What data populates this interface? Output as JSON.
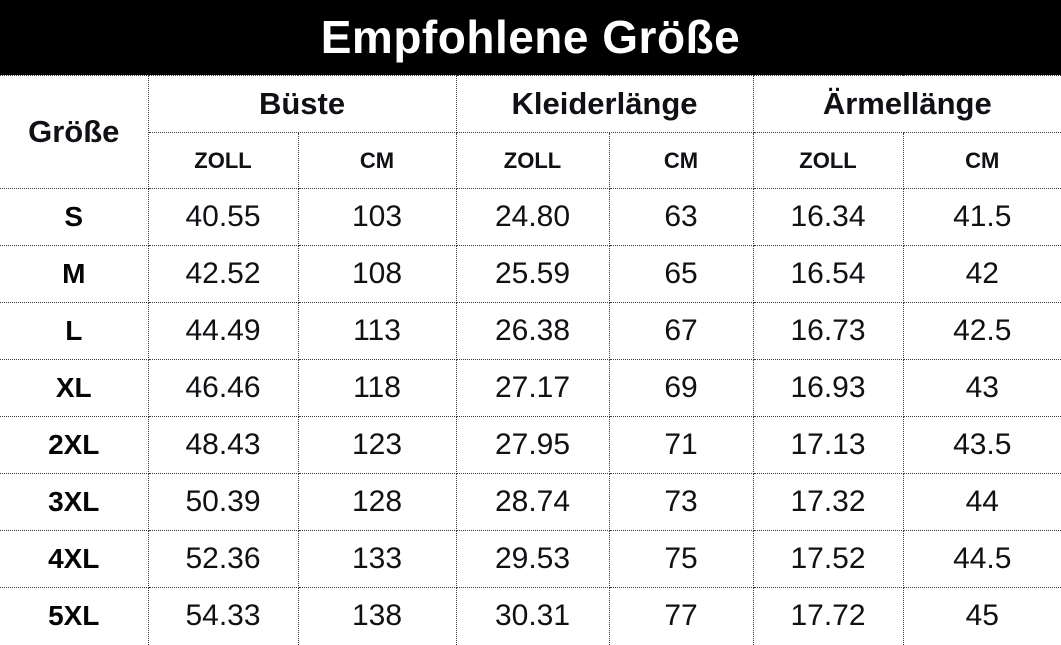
{
  "title": "Empfohlene Größe",
  "colors": {
    "title_bg": "#000000",
    "title_text": "#ffffff",
    "table_bg": "#ffffff",
    "table_text": "#17171c",
    "border": "#3b3b3b"
  },
  "table": {
    "corner_header": "Größe",
    "groups": [
      {
        "label": "Büste"
      },
      {
        "label": "Kleiderlänge"
      },
      {
        "label": "Ärmellänge"
      }
    ],
    "unit_headers": [
      "ZOLL",
      "CM",
      "ZOLL",
      "CM",
      "ZOLL",
      "CM"
    ],
    "rows": [
      {
        "size": "S",
        "values": [
          "40.55",
          "103",
          "24.80",
          "63",
          "16.34",
          "41.5"
        ]
      },
      {
        "size": "M",
        "values": [
          "42.52",
          "108",
          "25.59",
          "65",
          "16.54",
          "42"
        ]
      },
      {
        "size": "L",
        "values": [
          "44.49",
          "113",
          "26.38",
          "67",
          "16.73",
          "42.5"
        ]
      },
      {
        "size": "XL",
        "values": [
          "46.46",
          "118",
          "27.17",
          "69",
          "16.93",
          "43"
        ]
      },
      {
        "size": "2XL",
        "values": [
          "48.43",
          "123",
          "27.95",
          "71",
          "17.13",
          "43.5"
        ]
      },
      {
        "size": "3XL",
        "values": [
          "50.39",
          "128",
          "28.74",
          "73",
          "17.32",
          "44"
        ]
      },
      {
        "size": "4XL",
        "values": [
          "52.36",
          "133",
          "29.53",
          "75",
          "17.52",
          "44.5"
        ]
      },
      {
        "size": "5XL",
        "values": [
          "54.33",
          "138",
          "30.31",
          "77",
          "17.72",
          "45"
        ]
      }
    ]
  },
  "chart_data": {
    "type": "table",
    "title": "Empfohlene Größe",
    "columns": [
      "Größe",
      "Büste ZOLL",
      "Büste CM",
      "Kleiderlänge ZOLL",
      "Kleiderlänge CM",
      "Ärmellänge ZOLL",
      "Ärmellänge CM"
    ],
    "rows": [
      [
        "S",
        40.55,
        103,
        24.8,
        63,
        16.34,
        41.5
      ],
      [
        "M",
        42.52,
        108,
        25.59,
        65,
        16.54,
        42
      ],
      [
        "L",
        44.49,
        113,
        26.38,
        67,
        16.73,
        42.5
      ],
      [
        "XL",
        46.46,
        118,
        27.17,
        69,
        16.93,
        43
      ],
      [
        "2XL",
        48.43,
        123,
        27.95,
        71,
        17.13,
        43.5
      ],
      [
        "3XL",
        50.39,
        128,
        28.74,
        73,
        17.32,
        44
      ],
      [
        "4XL",
        52.36,
        133,
        29.53,
        75,
        17.52,
        44.5
      ],
      [
        "5XL",
        54.33,
        138,
        30.31,
        77,
        17.72,
        45
      ]
    ]
  }
}
